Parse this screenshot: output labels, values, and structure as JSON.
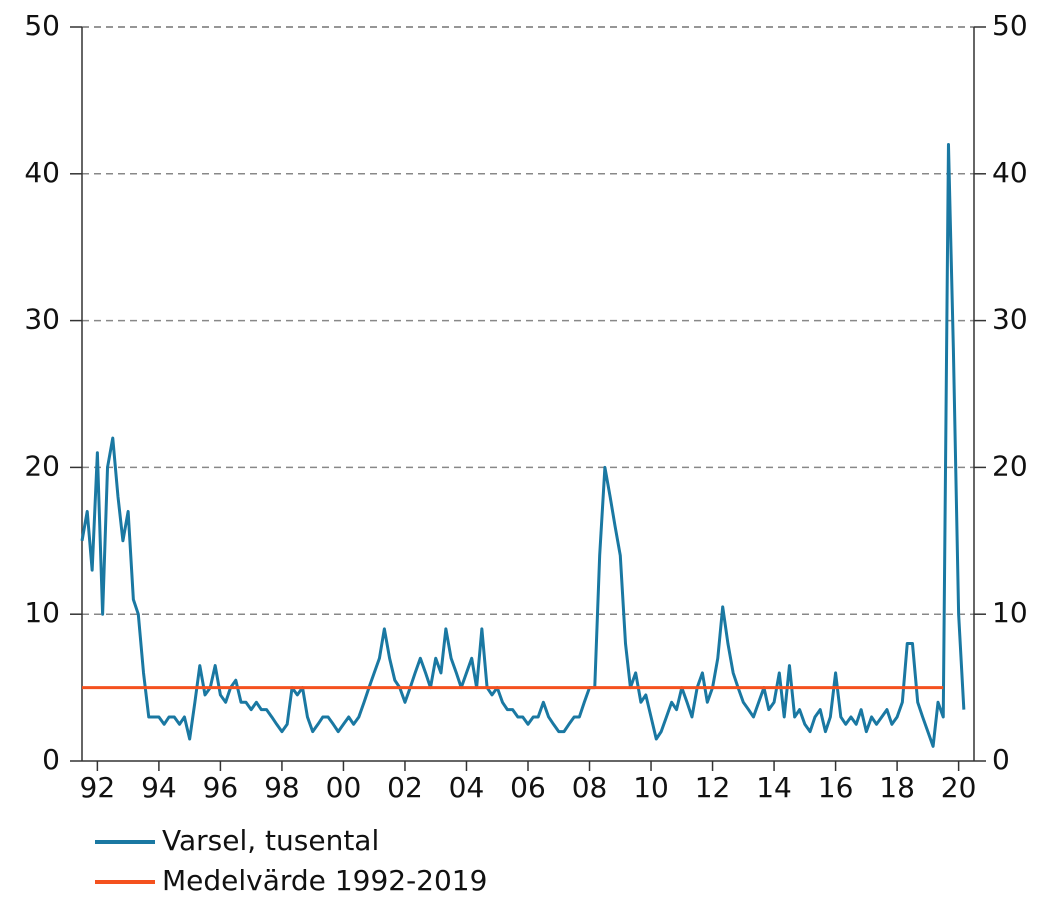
{
  "chart_data": {
    "type": "line",
    "xlim": [
      1992,
      2021
    ],
    "xticks": [
      {
        "value": 1992.5,
        "label": "92"
      },
      {
        "value": 1994.5,
        "label": "94"
      },
      {
        "value": 1996.5,
        "label": "96"
      },
      {
        "value": 1998.5,
        "label": "98"
      },
      {
        "value": 2000.5,
        "label": "00"
      },
      {
        "value": 2002.5,
        "label": "02"
      },
      {
        "value": 2004.5,
        "label": "04"
      },
      {
        "value": 2006.5,
        "label": "06"
      },
      {
        "value": 2008.5,
        "label": "08"
      },
      {
        "value": 2010.5,
        "label": "10"
      },
      {
        "value": 2012.5,
        "label": "12"
      },
      {
        "value": 2014.5,
        "label": "14"
      },
      {
        "value": 2016.5,
        "label": "16"
      },
      {
        "value": 2018.5,
        "label": "18"
      },
      {
        "value": 2020.5,
        "label": "20"
      }
    ],
    "ylim": [
      0,
      50
    ],
    "yticks": [
      0,
      10,
      20,
      30,
      40,
      50
    ],
    "y2lim": [
      0,
      50
    ],
    "y2ticks": [
      0,
      10,
      20,
      30,
      40,
      50
    ],
    "grid": true,
    "legend": "bottom",
    "series": [
      {
        "name": "Varsel, tusental",
        "color": "#1a78a2",
        "x": [
          1992,
          1992.17,
          1992.33,
          1992.5,
          1992.67,
          1992.83,
          1993,
          1993.17,
          1993.33,
          1993.5,
          1993.67,
          1993.83,
          1994,
          1994.17,
          1994.33,
          1994.5,
          1994.67,
          1994.83,
          1995,
          1995.17,
          1995.33,
          1995.5,
          1995.67,
          1995.83,
          1996,
          1996.17,
          1996.33,
          1996.5,
          1996.67,
          1996.83,
          1997,
          1997.17,
          1997.33,
          1997.5,
          1997.67,
          1997.83,
          1998,
          1998.17,
          1998.33,
          1998.5,
          1998.67,
          1998.83,
          1999,
          1999.17,
          1999.33,
          1999.5,
          1999.67,
          1999.83,
          2000,
          2000.17,
          2000.33,
          2000.5,
          2000.67,
          2000.83,
          2001,
          2001.17,
          2001.33,
          2001.5,
          2001.67,
          2001.83,
          2002,
          2002.17,
          2002.33,
          2002.5,
          2002.67,
          2002.83,
          2003,
          2003.17,
          2003.33,
          2003.5,
          2003.67,
          2003.83,
          2004,
          2004.17,
          2004.33,
          2004.5,
          2004.67,
          2004.83,
          2005,
          2005.17,
          2005.33,
          2005.5,
          2005.67,
          2005.83,
          2006,
          2006.17,
          2006.33,
          2006.5,
          2006.67,
          2006.83,
          2007,
          2007.17,
          2007.33,
          2007.5,
          2007.67,
          2007.83,
          2008,
          2008.17,
          2008.33,
          2008.5,
          2008.67,
          2008.83,
          2009,
          2009.17,
          2009.33,
          2009.5,
          2009.67,
          2009.83,
          2010,
          2010.17,
          2010.33,
          2010.5,
          2010.67,
          2010.83,
          2011,
          2011.17,
          2011.33,
          2011.5,
          2011.67,
          2011.83,
          2012,
          2012.17,
          2012.33,
          2012.5,
          2012.67,
          2012.83,
          2013,
          2013.17,
          2013.33,
          2013.5,
          2013.67,
          2013.83,
          2014,
          2014.17,
          2014.33,
          2014.5,
          2014.67,
          2014.83,
          2015,
          2015.17,
          2015.33,
          2015.5,
          2015.67,
          2015.83,
          2016,
          2016.17,
          2016.33,
          2016.5,
          2016.67,
          2016.83,
          2017,
          2017.17,
          2017.33,
          2017.5,
          2017.67,
          2017.83,
          2018,
          2018.17,
          2018.33,
          2018.5,
          2018.67,
          2018.83,
          2019,
          2019.17,
          2019.33,
          2019.5,
          2019.67,
          2019.83,
          2020,
          2020.17,
          2020.33,
          2020.5,
          2020.67
        ],
        "values": [
          15,
          17,
          13,
          21,
          10,
          20,
          22,
          18,
          15,
          17,
          11,
          10,
          6,
          3,
          3,
          3,
          2.5,
          3,
          3,
          2.5,
          3,
          1.5,
          4,
          6.5,
          4.5,
          5,
          6.5,
          4.5,
          4,
          5,
          5.5,
          4,
          4,
          3.5,
          4,
          3.5,
          3.5,
          3,
          2.5,
          2,
          2.5,
          5,
          4.5,
          5,
          3,
          2,
          2.5,
          3,
          3,
          2.5,
          2,
          2.5,
          3,
          2.5,
          3,
          4,
          5,
          6,
          7,
          9,
          7,
          5.5,
          5,
          4,
          5,
          6,
          7,
          6,
          5,
          7,
          6,
          9,
          7,
          6,
          5,
          6,
          7,
          5,
          9,
          5,
          4.5,
          5,
          4,
          3.5,
          3.5,
          3,
          3,
          2.5,
          3,
          3,
          4,
          3,
          2.5,
          2,
          2,
          2.5,
          3,
          3,
          4,
          5,
          5,
          14,
          20,
          18,
          16,
          14,
          8,
          5,
          6,
          4,
          4.5,
          3,
          1.5,
          2,
          3,
          4,
          3.5,
          5,
          4,
          3,
          5,
          6,
          4,
          5,
          7,
          10.5,
          8,
          6,
          5,
          4,
          3.5,
          3,
          4,
          5,
          3.5,
          4,
          6,
          3,
          6.5,
          3,
          3.5,
          2.5,
          2,
          3,
          3.5,
          2,
          3,
          6,
          3,
          2.5,
          3,
          2.5,
          3.5,
          2,
          3,
          2.5,
          3,
          3.5,
          2.5,
          3,
          4,
          8,
          8,
          4,
          3,
          2,
          1,
          4,
          3,
          42,
          28,
          10,
          3.5
        ]
      },
      {
        "name": "Medelvärde 1992-2019",
        "color": "#f4511e",
        "x": [
          1992,
          2020
        ],
        "values": [
          5,
          5
        ]
      }
    ]
  }
}
